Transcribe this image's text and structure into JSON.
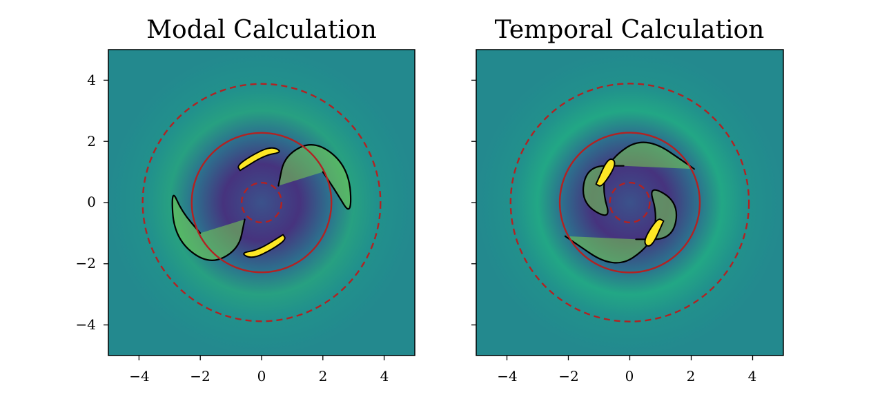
{
  "chart_data": [
    {
      "type": "heatmap",
      "title": "Modal Calculation",
      "xlabel": "",
      "ylabel": "",
      "xlim": [
        -5,
        5
      ],
      "ylim": [
        -5,
        5
      ],
      "xticks": [
        -4,
        -2,
        0,
        2,
        4
      ],
      "yticks": [
        -4,
        -2,
        0,
        2,
        4
      ],
      "xtick_labels": [
        "−4",
        "−2",
        "0",
        "2",
        "4"
      ],
      "ytick_labels": [
        "−4",
        "−2",
        "0",
        "2",
        "4"
      ],
      "colormap": "viridis",
      "solid_circle_radius": 2.28,
      "dashed_circle_radii": [
        0.65,
        3.88
      ],
      "circle_color": "#b22222",
      "contour_color": "#000000",
      "spiral_arms": [
        {
          "points": [
            [
              0.55,
              0.55
            ],
            [
              0.75,
              1.55
            ],
            [
              1.75,
              2.05
            ],
            [
              2.85,
              1.15
            ],
            [
              2.95,
              -0.5
            ],
            [
              2.4,
              0.4
            ],
            [
              2.0,
              1.0
            ]
          ]
        },
        {
          "points": [
            [
              -0.55,
              -0.55
            ],
            [
              -0.75,
              -1.55
            ],
            [
              -1.75,
              -2.05
            ],
            [
              -2.85,
              -1.15
            ],
            [
              -2.95,
              0.5
            ],
            [
              -2.6,
              -0.3
            ],
            [
              -2.0,
              -1.0
            ]
          ]
        }
      ],
      "bright_blobs": [
        {
          "points": [
            [
              -0.7,
              1.05
            ],
            [
              0.1,
              1.55
            ],
            [
              0.7,
              1.65
            ],
            [
              0.3,
              1.85
            ],
            [
              -0.4,
              1.5
            ],
            [
              -0.8,
              1.2
            ]
          ]
        },
        {
          "points": [
            [
              0.7,
              -1.05
            ],
            [
              -0.1,
              -1.55
            ],
            [
              -0.7,
              -1.65
            ],
            [
              -0.3,
              -1.85
            ],
            [
              0.4,
              -1.5
            ],
            [
              0.8,
              -1.2
            ]
          ]
        }
      ]
    },
    {
      "type": "heatmap",
      "title": "Temporal Calculation",
      "xlabel": "",
      "ylabel": "",
      "xlim": [
        -5,
        5
      ],
      "ylim": [
        -5,
        5
      ],
      "xticks": [
        -4,
        -2,
        0,
        2,
        4
      ],
      "yticks": [
        -4,
        -2,
        0,
        2,
        4
      ],
      "xtick_labels": [
        "−4",
        "−2",
        "0",
        "2",
        "4"
      ],
      "ytick_labels": [
        "",
        "",
        "",
        "",
        ""
      ],
      "colormap": "viridis",
      "solid_circle_radius": 2.28,
      "dashed_circle_radii": [
        0.65,
        3.88
      ],
      "circle_color": "#b22222",
      "contour_color": "#000000",
      "spiral_arms": [
        {
          "points": [
            [
              -0.2,
              1.2
            ],
            [
              -1.4,
              1.2
            ],
            [
              -1.6,
              0.0
            ],
            [
              -0.6,
              -0.6
            ],
            [
              -0.9,
              0.4
            ],
            [
              -0.7,
              1.4
            ],
            [
              0.5,
              2.2
            ],
            [
              2.1,
              1.1
            ]
          ]
        },
        {
          "points": [
            [
              0.2,
              -1.2
            ],
            [
              1.4,
              -1.2
            ],
            [
              1.6,
              0.0
            ],
            [
              0.6,
              0.6
            ],
            [
              0.9,
              -0.4
            ],
            [
              0.7,
              -1.4
            ],
            [
              -0.5,
              -2.2
            ],
            [
              -2.1,
              -1.1
            ]
          ]
        }
      ],
      "bright_blobs": [
        {
          "points": [
            [
              -1.1,
              0.6
            ],
            [
              -0.7,
              1.5
            ],
            [
              -0.4,
              1.3
            ],
            [
              -0.9,
              0.5
            ]
          ]
        },
        {
          "points": [
            [
              1.1,
              -0.6
            ],
            [
              0.7,
              -1.5
            ],
            [
              0.4,
              -1.3
            ],
            [
              0.9,
              -0.5
            ]
          ]
        }
      ]
    }
  ]
}
